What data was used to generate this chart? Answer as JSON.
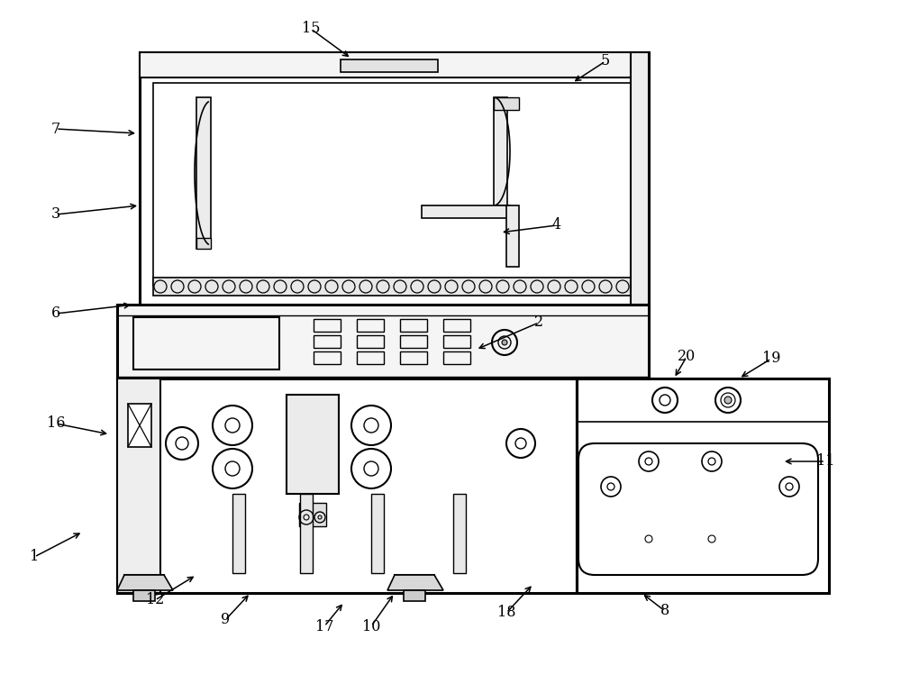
{
  "bg_color": "#ffffff",
  "lc": "#000000",
  "lw": 1.5,
  "figsize": [
    10.0,
    7.69
  ],
  "annotations": [
    [
      "15",
      390,
      65,
      345,
      32
    ],
    [
      "7",
      153,
      148,
      62,
      143
    ],
    [
      "5",
      635,
      92,
      672,
      68
    ],
    [
      "3",
      155,
      228,
      62,
      238
    ],
    [
      "4",
      555,
      258,
      618,
      250
    ],
    [
      "6",
      148,
      338,
      62,
      348
    ],
    [
      "2",
      528,
      388,
      598,
      358
    ],
    [
      "16",
      122,
      482,
      62,
      470
    ],
    [
      "1",
      92,
      590,
      38,
      618
    ],
    [
      "12",
      218,
      638,
      172,
      666
    ],
    [
      "9",
      278,
      658,
      250,
      688
    ],
    [
      "17",
      382,
      668,
      360,
      695
    ],
    [
      "10",
      438,
      658,
      412,
      695
    ],
    [
      "18",
      592,
      648,
      562,
      680
    ],
    [
      "20",
      748,
      420,
      762,
      396
    ],
    [
      "19",
      820,
      420,
      856,
      398
    ],
    [
      "11",
      868,
      512,
      916,
      512
    ],
    [
      "8",
      712,
      658,
      738,
      678
    ]
  ]
}
